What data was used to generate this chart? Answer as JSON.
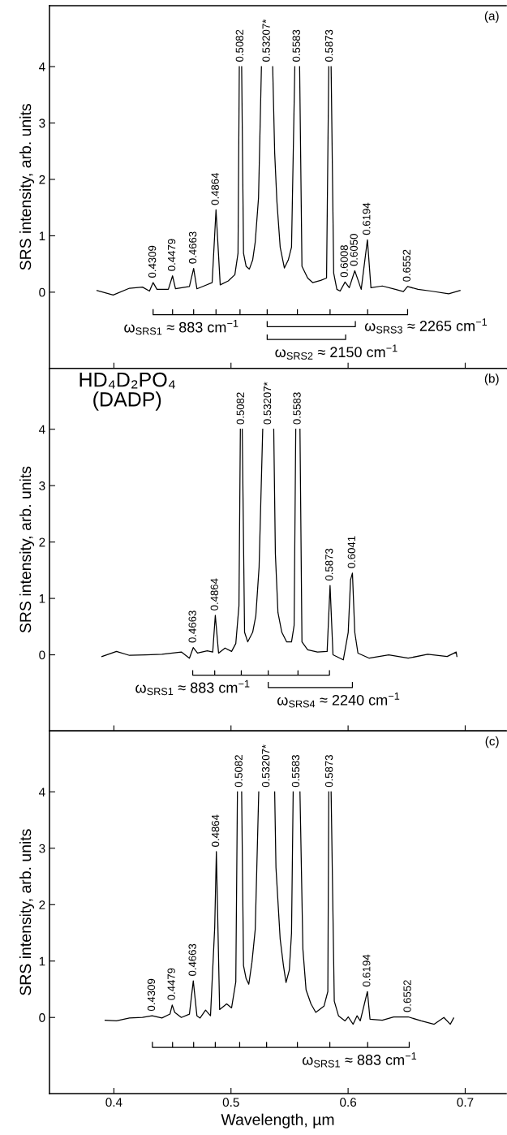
{
  "chart_data": [
    {
      "type": "line",
      "title": "(a)",
      "ylabel": "SRS intensity, arb. units",
      "xlim": [
        0.345,
        0.735
      ],
      "xticks": [
        0.4,
        0.5,
        0.6,
        0.7
      ],
      "ylim": [
        -1.35,
        5.08
      ],
      "yticks": [
        0,
        1,
        2,
        3,
        4
      ],
      "tick_labels": "y",
      "series": [
        {
          "color": "#000000",
          "x": [
            0.3856,
            0.3994,
            0.4133,
            0.4244,
            0.4304,
            0.4335,
            0.4368,
            0.4465,
            0.4501,
            0.4526,
            0.4645,
            0.4681,
            0.4709,
            0.4839,
            0.4872,
            0.4908,
            0.4977,
            0.5033,
            0.506,
            0.5071,
            0.5081,
            0.5091,
            0.5107,
            0.5129,
            0.5157,
            0.5185,
            0.5207,
            0.5235,
            0.526,
            0.5308,
            0.5356,
            0.5373,
            0.5392,
            0.542,
            0.5456,
            0.5489,
            0.5517,
            0.5545,
            0.5565,
            0.5586,
            0.5606,
            0.5655,
            0.5697,
            0.5766,
            0.5816,
            0.5835,
            0.5845,
            0.5855,
            0.5877,
            0.5904,
            0.5932,
            0.5974,
            0.601,
            0.6057,
            0.6084,
            0.6112,
            0.6165,
            0.6195,
            0.6292,
            0.6403,
            0.6472,
            0.6508,
            0.6597,
            0.6707,
            0.6859,
            0.6956
          ],
          "values": [
            0.03,
            -0.05,
            0.07,
            0.09,
            0.02,
            0.17,
            0.05,
            0.05,
            0.29,
            0.06,
            0.1,
            0.42,
            0.06,
            0.17,
            1.46,
            0.13,
            0.2,
            0.31,
            0.69,
            4,
            null,
            4,
            0.69,
            0.46,
            0.41,
            0.57,
            0.89,
            1.67,
            4,
            null,
            4,
            2.47,
            1.61,
            0.8,
            0.43,
            0.57,
            0.8,
            4,
            null,
            4,
            0.46,
            0.25,
            0.17,
            0.21,
            0.25,
            4,
            null,
            4,
            0.34,
            0.05,
            0.02,
            0.18,
            0.08,
            0.38,
            0.22,
            0.05,
            0.93,
            0.08,
            0.11,
            0.05,
            0.01,
            0.1,
            0.05,
            0.02,
            -0.03,
            0.03
          ]
        },
        {
          "color": "#000000",
          "x": [
            0.4335,
            0.4335,
            0.4501,
            0.4501,
            0.4501,
            0.4681,
            0.4681,
            0.4681,
            0.4872,
            0.4872,
            0.4872,
            0.5077,
            0.5077,
            0.5077,
            0.5309,
            0.5309,
            0.5309,
            0.5567,
            0.5567,
            0.5567,
            0.5846,
            0.5846,
            0.5846,
            0.6167,
            0.6167,
            0.6167,
            0.6508,
            0.6508
          ],
          "values": [
            -0.31,
            -0.4,
            -0.4,
            -0.31,
            -0.4,
            -0.4,
            -0.31,
            -0.4,
            -0.4,
            -0.31,
            -0.4,
            -0.4,
            -0.31,
            -0.4,
            -0.4,
            -0.31,
            -0.4,
            -0.4,
            -0.31,
            -0.4,
            -0.4,
            -0.31,
            -0.4,
            -0.4,
            -0.31,
            -0.4,
            -0.4,
            -0.31
          ]
        },
        {
          "color": "#000000",
          "x": [
            0.5309,
            0.5309,
            0.6062,
            0.6062
          ],
          "values": [
            -0.52,
            -0.61,
            -0.61,
            -0.52
          ]
        },
        {
          "color": "#000000",
          "x": [
            0.5309,
            0.5309,
            0.5979,
            0.5979
          ],
          "values": [
            -0.76,
            -0.84,
            -0.84,
            -0.76
          ]
        }
      ],
      "annotations": [
        {
          "text": "0.4309",
          "x": 0.4335,
          "y": 0.17
        },
        {
          "text": "0.4479",
          "x": 0.4501,
          "y": 0.29
        },
        {
          "text": "0.4663",
          "x": 0.4681,
          "y": 0.42
        },
        {
          "text": "0.4864",
          "x": 0.4872,
          "y": 1.46
        },
        {
          "text": "0.5082",
          "x": 0.5071,
          "y": 4
        },
        {
          "text": "0.53207*",
          "x": 0.526,
          "y": 4
        },
        {
          "text": "0.5583",
          "x": 0.5545,
          "y": 4
        },
        {
          "text": "0.5873",
          "x": 0.5835,
          "y": 4
        },
        {
          "text": "0.6008",
          "x": 0.5974,
          "y": 0.18
        },
        {
          "text": "0.6050",
          "x": 0.6057,
          "y": 0.38
        },
        {
          "text": "0.6194",
          "x": 0.6165,
          "y": 0.93
        },
        {
          "text": "0.6552",
          "x": 0.6508,
          "y": 0.1
        },
        {
          "text": "ω$_{SRS1}$ ≈ 883 cm$^{−1}$",
          "x": 0.4576,
          "y": -0.4
        },
        {
          "text": "ω$_{SRS3}$ ≈ 2265 cm$^{−1}$",
          "x": 0.6062,
          "y": -0.61
        },
        {
          "text": "ω$_{SRS2}$ ≈ 2150 cm$^{−1}$",
          "x": 0.59,
          "y": -0.84
        }
      ]
    },
    {
      "type": "line",
      "title": "(b)",
      "subtitle": "HD₄D₂PO₄\n(DADP)",
      "ylabel": "SRS intensity, arb. units",
      "xlim": [
        0.345,
        0.735
      ],
      "xticks": [
        0.4,
        0.5,
        0.6,
        0.7
      ],
      "ylim": [
        -1.35,
        5.08
      ],
      "yticks": [
        0,
        1,
        2,
        3,
        4
      ],
      "tick_labels": "y",
      "series": [
        {
          "color": "#000000",
          "x": [
            0.3898,
            0.4022,
            0.4133,
            0.4271,
            0.441,
            0.4576,
            0.4645,
            0.4678,
            0.4714,
            0.4797,
            0.4844,
            0.4866,
            0.4894,
            0.4949,
            0.5005,
            0.5041,
            0.5068,
            0.508,
            0.5088,
            0.5096,
            0.5116,
            0.5143,
            0.5185,
            0.5212,
            0.524,
            0.5271,
            0.5318,
            0.5365,
            0.5379,
            0.5401,
            0.5434,
            0.5475,
            0.5517,
            0.5539,
            0.5553,
            0.5571,
            0.5589,
            0.5606,
            0.5655,
            0.5738,
            0.5821,
            0.5846,
            0.5871,
            0.5959,
            0.6001,
            0.6021,
            0.6037,
            0.6057,
            0.6084,
            0.6181,
            0.6347,
            0.6513,
            0.668,
            0.6846,
            0.6923,
            0.6929
          ],
          "values": [
            -0.03,
            0.06,
            -0.01,
            0,
            0.01,
            0.05,
            -0.06,
            0.13,
            0.03,
            0.07,
            0.05,
            0.7,
            0.03,
            0.12,
            0.06,
            0.2,
            0.87,
            4,
            null,
            4,
            0.4,
            0.23,
            0.4,
            0.69,
            1.56,
            4,
            null,
            4,
            1.79,
            0.75,
            0.4,
            0.23,
            0.23,
            0.52,
            4,
            null,
            4,
            0.23,
            0.09,
            0.05,
            0.06,
            1.23,
            0,
            -0.09,
            0.4,
            1.33,
            1.45,
            0.4,
            0.03,
            -0.06,
            0,
            -0.06,
            0.01,
            -0.03,
            0.05,
            -0.03
          ]
        },
        {
          "color": "#000000",
          "x": [
            0.4673,
            0.4673,
            0.4861,
            0.4861,
            0.4861,
            0.5088,
            0.5088,
            0.5088,
            0.5318,
            0.5318,
            0.5318,
            0.5572,
            0.5572,
            0.5572,
            0.5841,
            0.5841
          ],
          "values": [
            -0.28,
            -0.36,
            -0.36,
            -0.28,
            -0.36,
            -0.36,
            -0.28,
            -0.36,
            -0.36,
            -0.28,
            -0.36,
            -0.36,
            -0.28,
            -0.36,
            -0.36,
            -0.28
          ]
        },
        {
          "color": "#000000",
          "x": [
            0.5318,
            0.5318,
            0.6037,
            0.6037
          ],
          "values": [
            -0.49,
            -0.58,
            -0.58,
            -0.49
          ]
        }
      ],
      "annotations": [
        {
          "text": "0.4663",
          "x": 0.4678,
          "y": 0.13
        },
        {
          "text": "0.4864",
          "x": 0.4866,
          "y": 0.7
        },
        {
          "text": "0.5082",
          "x": 0.508,
          "y": 4
        },
        {
          "text": "0.53207*",
          "x": 0.5271,
          "y": 4
        },
        {
          "text": "0.5583",
          "x": 0.5553,
          "y": 4
        },
        {
          "text": "0.5873",
          "x": 0.5846,
          "y": 1.23
        },
        {
          "text": "0.6041",
          "x": 0.6037,
          "y": 1.45
        },
        {
          "text": "ω$_{SRS1}$ ≈ 883 cm$^{−1}$",
          "x": 0.4673,
          "y": -0.36
        },
        {
          "text": "ω$_{SRS4}$ ≈ 2240 cm$^{−1}$",
          "x": 0.5918,
          "y": -0.58
        }
      ]
    },
    {
      "type": "line",
      "title": "(c)",
      "xlabel": "Wavelength, µm",
      "ylabel": "SRS intensity, arb. units",
      "xlim": [
        0.345,
        0.735
      ],
      "xticks": [
        0.4,
        0.5,
        0.6,
        0.7
      ],
      "ylim": [
        -1.35,
        5.08
      ],
      "yticks": [
        0,
        1,
        2,
        3,
        4
      ],
      "series": [
        {
          "color": "#000000",
          "x": [
            0.3925,
            0.4022,
            0.4133,
            0.4244,
            0.4327,
            0.441,
            0.4479,
            0.4498,
            0.452,
            0.4576,
            0.4645,
            0.4678,
            0.4709,
            0.4736,
            0.4783,
            0.4825,
            0.4861,
            0.4875,
            0.4903,
            0.4963,
            0.5005,
            0.5041,
            0.5055,
            0.5073,
            0.5091,
            0.5107,
            0.5129,
            0.5152,
            0.5179,
            0.5207,
            0.5237,
            0.5305,
            0.5373,
            0.5384,
            0.542,
            0.5448,
            0.547,
            0.5498,
            0.5517,
            0.5531,
            0.556,
            0.5589,
            0.5614,
            0.5641,
            0.5683,
            0.5724,
            0.5794,
            0.5827,
            0.5835,
            0.5845,
            0.5855,
            0.5882,
            0.5918,
            0.5974,
            0.6001,
            0.6043,
            0.6076,
            0.6104,
            0.6165,
            0.6187,
            0.6292,
            0.6389,
            0.6513,
            0.6624,
            0.6735,
            0.6818,
            0.6873,
            0.6901
          ],
          "values": [
            -0.05,
            -0.06,
            -0.01,
            0,
            0.03,
            -0.01,
            0.06,
            0.22,
            0.09,
            0,
            0.06,
            0.65,
            0.03,
            -0.01,
            0.13,
            0.03,
            1.6,
            2.94,
            0.14,
            0.24,
            0.17,
            0.63,
            4,
            null,
            4,
            0.92,
            0.69,
            0.59,
            0.98,
            1.56,
            4,
            null,
            4,
            2.66,
            1.39,
            0.92,
            0.62,
            0.84,
            1.5,
            4,
            null,
            4,
            1.21,
            0.49,
            0.24,
            0.09,
            0.2,
            0.46,
            4,
            null,
            4,
            0.29,
            0.03,
            -0.06,
            0.01,
            -0.12,
            0.03,
            -0.06,
            0.46,
            -0.03,
            -0.05,
            0.01,
            0.01,
            -0.06,
            -0.12,
            0,
            -0.12,
            -0.01
          ]
        },
        {
          "color": "#000000",
          "x": [
            0.4329,
            0.4329,
            0.4501,
            0.4501,
            0.4501,
            0.4681,
            0.4681,
            0.4681,
            0.4866,
            0.4866,
            0.4866,
            0.5074,
            0.5074,
            0.5074,
            0.5304,
            0.5304,
            0.5304,
            0.5567,
            0.5567,
            0.5567,
            0.5844,
            0.5844,
            0.5844,
            0.6167,
            0.6167,
            0.6167,
            0.6522,
            0.6522
          ],
          "values": [
            -0.44,
            -0.53,
            -0.53,
            -0.44,
            -0.53,
            -0.53,
            -0.44,
            -0.53,
            -0.53,
            -0.44,
            -0.53,
            -0.53,
            -0.44,
            -0.53,
            -0.53,
            -0.44,
            -0.53,
            -0.53,
            -0.44,
            -0.53,
            -0.53,
            -0.44,
            -0.53,
            -0.53,
            -0.44,
            -0.53,
            -0.53,
            -0.44
          ]
        }
      ],
      "annotations": [
        {
          "text": "0.4309",
          "x": 0.4327,
          "y": 0.03
        },
        {
          "text": "0.4479",
          "x": 0.4498,
          "y": 0.22
        },
        {
          "text": "0.4663",
          "x": 0.4678,
          "y": 0.65
        },
        {
          "text": "0.4864",
          "x": 0.4875,
          "y": 2.94
        },
        {
          "text": "0.5082",
          "x": 0.5055,
          "y": 4
        },
        {
          "text": "0.53207*",
          "x": 0.5237,
          "y": 4
        },
        {
          "text": "0.5583",
          "x": 0.5531,
          "y": 4
        },
        {
          "text": "0.5873",
          "x": 0.5835,
          "y": 4
        },
        {
          "text": "0.6194",
          "x": 0.6165,
          "y": 0.46
        },
        {
          "text": "0.6552",
          "x": 0.6513,
          "y": 0.01
        },
        {
          "text": "ω$_{SRS1}$ ≈ 883 cm$^{−1}$",
          "x": 0.6098,
          "y": -0.53
        }
      ]
    }
  ]
}
